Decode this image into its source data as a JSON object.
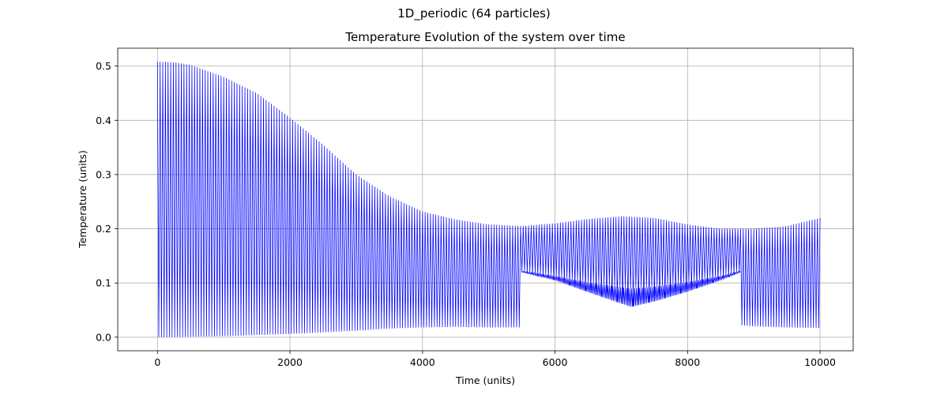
{
  "suptitle": "1D_periodic (64 particles)",
  "chart_data": {
    "type": "line",
    "title": "Temperature Evolution of the system over time",
    "xlabel": "Time (units)",
    "ylabel": "Temperature (units)",
    "xlim": [
      -600,
      10500
    ],
    "ylim": [
      -0.025,
      0.533
    ],
    "xticks": [
      0,
      2000,
      4000,
      6000,
      8000,
      10000
    ],
    "xtick_labels": [
      "0",
      "2000",
      "4000",
      "6000",
      "8000",
      "10000"
    ],
    "yticks": [
      0.0,
      0.1,
      0.2,
      0.3,
      0.4,
      0.5
    ],
    "ytick_labels": [
      "0.0",
      "0.1",
      "0.2",
      "0.3",
      "0.4",
      "0.5"
    ],
    "grid": true,
    "series": [
      {
        "color": "#0000ff",
        "style": "rapid oscillation between lower and upper envelope",
        "oscillation_period": 40,
        "upper_envelope": {
          "x": [
            0,
            250,
            500,
            1000,
            1500,
            2000,
            2500,
            3000,
            3500,
            4000,
            4500,
            5000,
            5500,
            6000,
            6500,
            7000,
            7500,
            8000,
            8500,
            9000,
            9500,
            10000
          ],
          "y": [
            0.508,
            0.507,
            0.502,
            0.48,
            0.45,
            0.405,
            0.355,
            0.3,
            0.26,
            0.232,
            0.217,
            0.208,
            0.205,
            0.21,
            0.218,
            0.223,
            0.22,
            0.208,
            0.2,
            0.2,
            0.205,
            0.22
          ]
        },
        "lower_envelope": {
          "x": [
            0,
            500,
            1000,
            1500,
            2000,
            2500,
            3000,
            3500,
            4000,
            4500,
            5000,
            5500,
            6000,
            6500,
            7000,
            7200,
            7500,
            8000,
            8500,
            9000,
            9500,
            10000
          ],
          "y": [
            0.0,
            0.001,
            0.002,
            0.004,
            0.006,
            0.009,
            0.012,
            0.016,
            0.018,
            0.019,
            0.018,
            0.018,
            0.025,
            0.04,
            0.055,
            0.058,
            0.05,
            0.035,
            0.025,
            0.02,
            0.018,
            0.017
          ]
        },
        "beat_band": {
          "x": [
            5500,
            6000,
            6500,
            7000,
            7150,
            7500,
            8000,
            8500,
            8800
          ],
          "upper": [
            0.122,
            0.113,
            0.101,
            0.092,
            0.09,
            0.093,
            0.102,
            0.113,
            0.122
          ],
          "lower": [
            0.12,
            0.105,
            0.083,
            0.062,
            0.056,
            0.066,
            0.084,
            0.105,
            0.12
          ]
        }
      }
    ]
  }
}
